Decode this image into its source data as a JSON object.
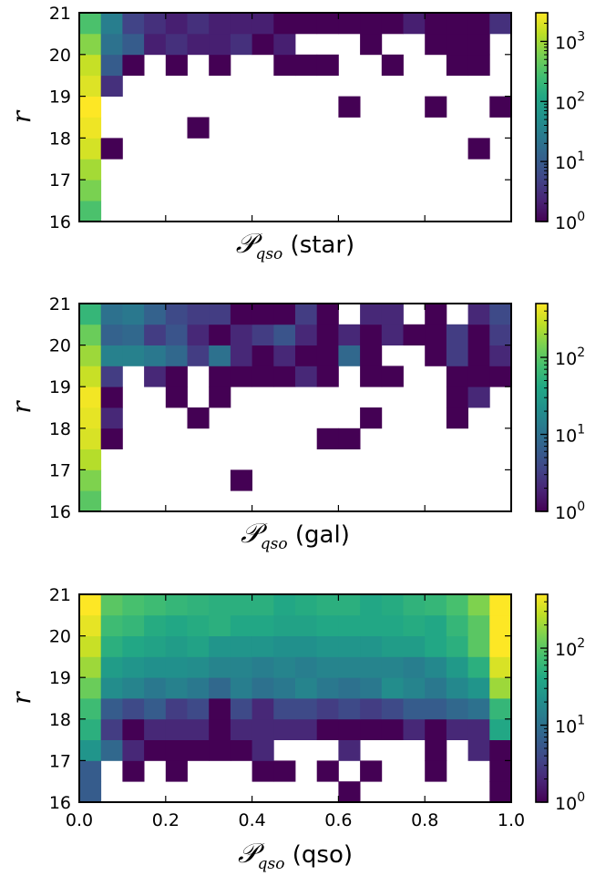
{
  "chart_data": [
    {
      "type": "heatmap",
      "xlabel_symbol": "𝒫",
      "xlabel_subscript": "qso",
      "xlabel_suffix": " (star)",
      "ylabel": "r",
      "xlim": [
        0.0,
        1.0
      ],
      "ylim": [
        16,
        21
      ],
      "x_bins": 20,
      "y_bins": 10,
      "x_tick_labels": [],
      "y_tick_labels": [
        "16",
        "17",
        "18",
        "19",
        "20",
        "21"
      ],
      "y_ticks": [
        16,
        17,
        18,
        19,
        20,
        21
      ],
      "colorbar": {
        "scale": "log",
        "vmax": 3000,
        "tick_labels": [
          "10^0",
          "10^1",
          "10^2",
          "10^3"
        ],
        "tick_values": [
          1,
          10,
          100,
          1000
        ]
      },
      "counts": [
        [
          300,
          0,
          0,
          0,
          0,
          0,
          0,
          0,
          0,
          0,
          0,
          0,
          0,
          0,
          0,
          0,
          0,
          0,
          0,
          0
        ],
        [
          600,
          0,
          0,
          0,
          0,
          0,
          0,
          0,
          0,
          0,
          0,
          0,
          0,
          0,
          0,
          0,
          0,
          0,
          0,
          0
        ],
        [
          1000,
          0,
          0,
          0,
          0,
          0,
          0,
          0,
          0,
          0,
          0,
          0,
          0,
          0,
          0,
          0,
          0,
          0,
          0,
          0
        ],
        [
          1800,
          1,
          0,
          0,
          0,
          0,
          0,
          0,
          0,
          0,
          0,
          0,
          0,
          0,
          0,
          0,
          0,
          0,
          1,
          0
        ],
        [
          2500,
          0,
          0,
          0,
          0,
          1,
          0,
          0,
          0,
          0,
          0,
          0,
          0,
          0,
          0,
          0,
          0,
          0,
          0,
          0
        ],
        [
          3000,
          0,
          0,
          0,
          0,
          0,
          0,
          0,
          0,
          0,
          0,
          0,
          1,
          0,
          0,
          0,
          1,
          0,
          0,
          1
        ],
        [
          2000,
          3,
          0,
          0,
          0,
          0,
          0,
          0,
          0,
          0,
          0,
          0,
          0,
          0,
          0,
          0,
          0,
          0,
          0,
          0
        ],
        [
          1500,
          10,
          1,
          0,
          1,
          0,
          1,
          0,
          0,
          1,
          1,
          1,
          0,
          0,
          1,
          0,
          0,
          1,
          1,
          0
        ],
        [
          700,
          20,
          10,
          2,
          3,
          2,
          2,
          3,
          1,
          2,
          0,
          0,
          0,
          1,
          0,
          0,
          1,
          1,
          1,
          0
        ],
        [
          300,
          30,
          5,
          3,
          2,
          3,
          2,
          2,
          2,
          1,
          1,
          1,
          1,
          1,
          1,
          2,
          1,
          1,
          1,
          3
        ]
      ]
    },
    {
      "type": "heatmap",
      "xlabel_symbol": "𝒫",
      "xlabel_subscript": "qso",
      "xlabel_suffix": " (gal)",
      "ylabel": "r",
      "xlim": [
        0.0,
        1.0
      ],
      "ylim": [
        16,
        21
      ],
      "x_bins": 20,
      "y_bins": 10,
      "x_tick_labels": [],
      "y_tick_labels": [
        "16",
        "17",
        "18",
        "19",
        "20",
        "21"
      ],
      "y_ticks": [
        16,
        17,
        18,
        19,
        20,
        21
      ],
      "colorbar": {
        "scale": "log",
        "vmax": 500,
        "tick_labels": [
          "10^0",
          "10^1",
          "10^2"
        ],
        "tick_values": [
          1,
          10,
          100
        ]
      },
      "counts": [
        [
          100,
          0,
          0,
          0,
          0,
          0,
          0,
          0,
          0,
          0,
          0,
          0,
          0,
          0,
          0,
          0,
          0,
          0,
          0,
          0
        ],
        [
          150,
          0,
          0,
          0,
          0,
          0,
          0,
          1,
          0,
          0,
          0,
          0,
          0,
          0,
          0,
          0,
          0,
          0,
          0,
          0
        ],
        [
          250,
          0,
          0,
          0,
          0,
          0,
          0,
          0,
          0,
          0,
          0,
          0,
          0,
          0,
          0,
          0,
          0,
          0,
          0,
          0
        ],
        [
          350,
          1,
          0,
          0,
          0,
          0,
          0,
          0,
          0,
          0,
          0,
          1,
          1,
          0,
          0,
          0,
          0,
          0,
          0,
          0
        ],
        [
          400,
          2,
          0,
          0,
          0,
          1,
          0,
          0,
          0,
          0,
          0,
          0,
          0,
          1,
          0,
          0,
          0,
          1,
          0,
          0
        ],
        [
          450,
          1,
          0,
          0,
          1,
          0,
          1,
          0,
          0,
          0,
          0,
          0,
          0,
          0,
          0,
          0,
          0,
          1,
          2,
          0
        ],
        [
          300,
          3,
          0,
          2,
          1,
          0,
          1,
          1,
          1,
          1,
          2,
          1,
          0,
          1,
          1,
          0,
          0,
          1,
          1,
          1
        ],
        [
          200,
          15,
          15,
          12,
          8,
          3,
          10,
          2,
          1,
          2,
          1,
          1,
          8,
          1,
          0,
          0,
          1,
          3,
          1,
          2
        ],
        [
          120,
          7,
          8,
          3,
          5,
          2,
          1,
          2,
          3,
          5,
          2,
          1,
          2,
          1,
          2,
          1,
          1,
          3,
          1,
          3
        ],
        [
          60,
          10,
          12,
          7,
          4,
          3,
          3,
          1,
          1,
          1,
          3,
          1,
          0,
          2,
          2,
          0,
          1,
          0,
          2,
          4
        ]
      ]
    },
    {
      "type": "heatmap",
      "xlabel_symbol": "𝒫",
      "xlabel_subscript": "qso",
      "xlabel_suffix": " (qso)",
      "ylabel": "r",
      "xlim": [
        0.0,
        1.0
      ],
      "ylim": [
        16,
        21
      ],
      "x_bins": 20,
      "y_bins": 10,
      "x_tick_labels": [
        "0.0",
        "0.2",
        "0.4",
        "0.6",
        "0.8",
        "1.0"
      ],
      "x_ticks": [
        0.0,
        0.2,
        0.4,
        0.6,
        0.8,
        1.0
      ],
      "y_tick_labels": [
        "16",
        "17",
        "18",
        "19",
        "20",
        "21"
      ],
      "y_ticks": [
        16,
        17,
        18,
        19,
        20,
        21
      ],
      "colorbar": {
        "scale": "log",
        "vmax": 500,
        "tick_labels": [
          "10^0",
          "10^1",
          "10^2"
        ],
        "tick_values": [
          1,
          10,
          100
        ]
      },
      "counts": [
        [
          6,
          0,
          0,
          0,
          0,
          0,
          0,
          0,
          0,
          0,
          0,
          0,
          1,
          0,
          0,
          0,
          0,
          0,
          0,
          1
        ],
        [
          6,
          0,
          1,
          0,
          1,
          0,
          0,
          0,
          1,
          1,
          0,
          1,
          0,
          1,
          0,
          0,
          1,
          0,
          0,
          1
        ],
        [
          25,
          8,
          2,
          1,
          1,
          1,
          1,
          1,
          2,
          0,
          0,
          0,
          2,
          0,
          0,
          0,
          1,
          0,
          2,
          1
        ],
        [
          50,
          3,
          1,
          2,
          2,
          2,
          1,
          2,
          2,
          2,
          2,
          1,
          1,
          1,
          1,
          2,
          1,
          2,
          2,
          40
        ],
        [
          70,
          6,
          4,
          6,
          3,
          4,
          1,
          4,
          2,
          4,
          4,
          3,
          4,
          3,
          4,
          6,
          6,
          8,
          10,
          60
        ],
        [
          120,
          20,
          16,
          12,
          15,
          12,
          8,
          14,
          10,
          12,
          16,
          12,
          10,
          12,
          20,
          16,
          12,
          18,
          25,
          200
        ],
        [
          200,
          30,
          25,
          22,
          22,
          20,
          16,
          16,
          14,
          16,
          14,
          16,
          16,
          16,
          16,
          14,
          18,
          28,
          50,
          350
        ],
        [
          300,
          50,
          40,
          35,
          30,
          35,
          25,
          25,
          25,
          22,
          22,
          25,
          25,
          25,
          30,
          30,
          40,
          50,
          100,
          500
        ],
        [
          400,
          70,
          60,
          45,
          40,
          45,
          50,
          40,
          40,
          35,
          35,
          40,
          40,
          40,
          40,
          45,
          40,
          60,
          100,
          500
        ],
        [
          500,
          100,
          80,
          70,
          60,
          55,
          50,
          50,
          50,
          40,
          45,
          50,
          50,
          40,
          45,
          55,
          60,
          80,
          150,
          500
        ]
      ]
    }
  ]
}
